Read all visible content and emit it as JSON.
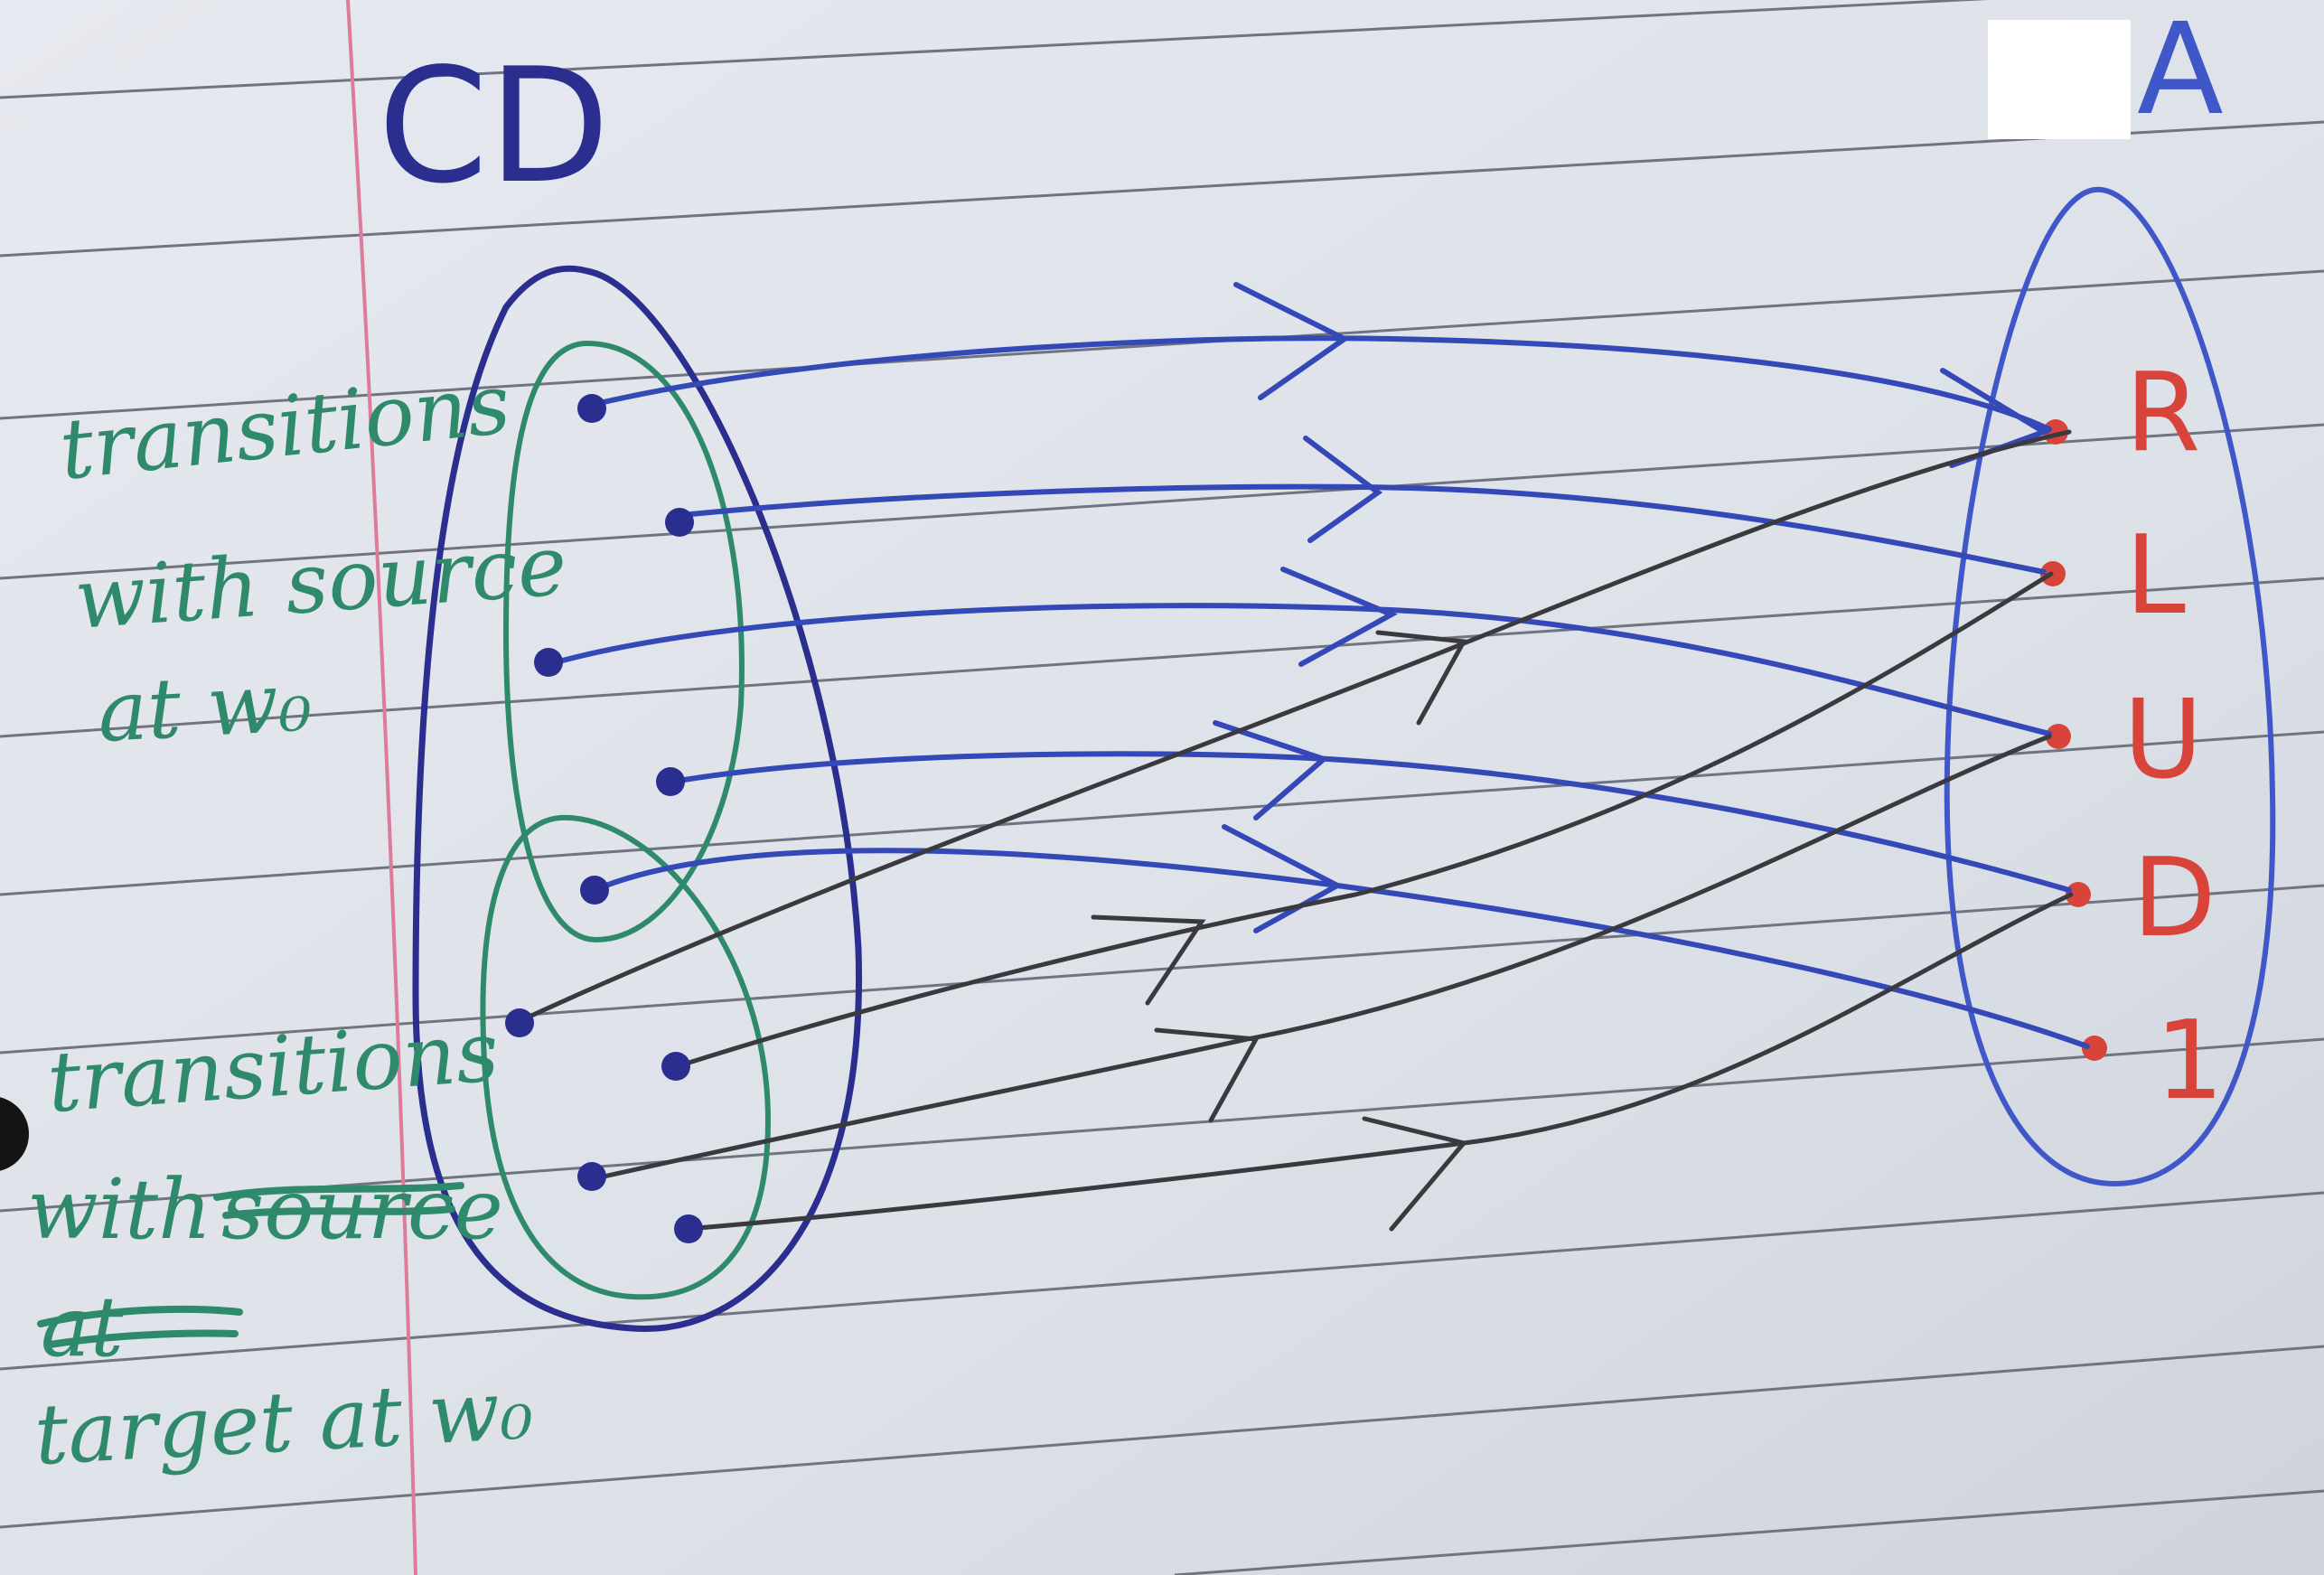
{
  "left_set": {
    "label": "CD",
    "source_group_caption": [
      "transitions",
      "with source",
      "at w₀"
    ],
    "target_group_caption": [
      "transitions",
      "with",
      "target at w₀"
    ],
    "struck_out_words": [
      "source",
      "at"
    ]
  },
  "right_set": {
    "label": "A",
    "elements": [
      "R",
      "L",
      "U",
      "D",
      "1"
    ]
  },
  "mappings": [
    {
      "group": "source",
      "to": "R"
    },
    {
      "group": "source",
      "to": "L"
    },
    {
      "group": "source",
      "to": "U"
    },
    {
      "group": "source",
      "to": "D"
    },
    {
      "group": "source",
      "to": "1"
    },
    {
      "group": "target",
      "to": "R"
    },
    {
      "group": "target",
      "to": "L"
    },
    {
      "group": "target",
      "to": "U"
    },
    {
      "group": "target",
      "to": "D"
    }
  ],
  "colors": {
    "paper": "#dfe3ea",
    "ruled_line": "#6f7480",
    "margin_line": "#e07a9a",
    "set_outline": "#2a2f8f",
    "set_a_outline": "#3f57c8",
    "source_arrow": "#3548b8",
    "target_arrow": "#3a3a3e",
    "green_ink": "#2e8a6a",
    "red_ink": "#d9443a"
  }
}
